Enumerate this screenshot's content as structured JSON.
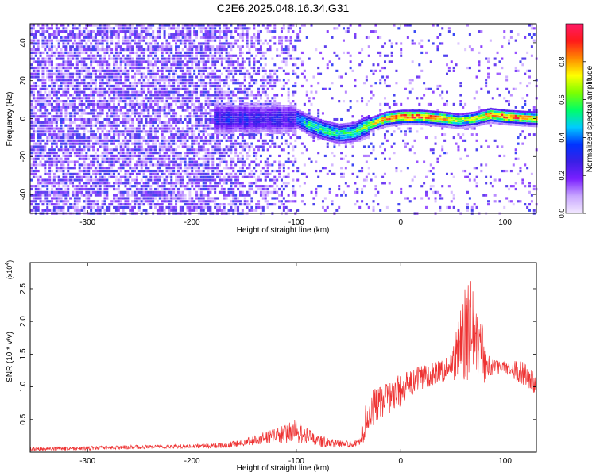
{
  "title": "C2E6.2025.048.16.34.G31",
  "chart_data": [
    {
      "type": "heatmap",
      "xlabel": "Height of straight line (km)",
      "ylabel": "Frequency (Hz)",
      "xlim": [
        -355,
        130
      ],
      "ylim": [
        -50,
        50
      ],
      "xticks": [
        -300,
        -200,
        -100,
        0,
        100
      ],
      "xtick_labels": [
        "-300",
        "-200",
        "-100",
        "0",
        "100"
      ],
      "yticks": [
        -40,
        -20,
        0,
        20,
        40
      ],
      "ytick_labels": [
        "-40",
        "-20",
        "0",
        "20",
        "40"
      ],
      "colorbar": {
        "label": "Normalized spectral amplitude",
        "range": [
          0,
          1
        ],
        "ticks": [
          0.0,
          0.2,
          0.4,
          0.6,
          0.8
        ],
        "tick_labels": [
          "0.0",
          "0.2",
          "0.4",
          "0.6",
          "0.8"
        ],
        "colors": [
          "#f2e8ff",
          "#c9a8ff",
          "#7a1fff",
          "#3a1fe6",
          "#0033ff",
          "#00ccff",
          "#00ff66",
          "#7dff00",
          "#ffff00",
          "#ff8800",
          "#ff1a1a",
          "#ff1a66"
        ]
      },
      "ridge": {
        "x": [
          -100,
          -90,
          -75,
          -60,
          -45,
          -30,
          -15,
          0,
          20,
          40,
          55,
          70,
          85,
          100,
          130
        ],
        "y": [
          0,
          -3,
          -6,
          -8,
          -7,
          -3,
          0,
          1,
          1,
          0,
          -1,
          0,
          2,
          1,
          0
        ],
        "strength": [
          0.45,
          0.55,
          0.6,
          0.55,
          0.6,
          0.7,
          0.85,
          0.95,
          0.95,
          0.9,
          0.7,
          0.75,
          0.9,
          0.95,
          0.8
        ]
      }
    },
    {
      "type": "line",
      "xlabel": "Height of straight line (km)",
      "ylabel": "SNR (10 * v/v)",
      "y_multiplier": "(x10",
      "y_multiplier_exp": "4",
      "y_multiplier_close": ")",
      "xlim": [
        -355,
        130
      ],
      "ylim": [
        0,
        29000
      ],
      "xticks": [
        -300,
        -200,
        -100,
        0,
        100
      ],
      "xtick_labels": [
        "-300",
        "-200",
        "-100",
        "0",
        "100"
      ],
      "yticks": [
        5000,
        10000,
        15000,
        20000,
        25000
      ],
      "ytick_labels": [
        "0.5",
        "1.0",
        "1.5",
        "2.0",
        "2.5"
      ],
      "series": [
        {
          "color": "#ee3333",
          "x": [
            -355,
            -300,
            -250,
            -200,
            -170,
            -150,
            -130,
            -110,
            -100,
            -90,
            -80,
            -70,
            -60,
            -50,
            -40,
            -35,
            -30,
            -20,
            -10,
            0,
            10,
            20,
            30,
            40,
            50,
            55,
            60,
            65,
            70,
            75,
            80,
            85,
            90,
            100,
            110,
            120,
            130
          ],
          "y": [
            500,
            600,
            800,
            900,
            1000,
            1500,
            2200,
            2800,
            3200,
            2500,
            1800,
            1500,
            1300,
            1200,
            1500,
            4000,
            6500,
            7500,
            8500,
            9500,
            10500,
            11500,
            12000,
            12500,
            13500,
            16000,
            17500,
            18500,
            19000,
            17000,
            14000,
            13000,
            13000,
            13000,
            12500,
            12000,
            10000
          ],
          "amplitude": [
            300,
            300,
            300,
            300,
            400,
            600,
            900,
            1500,
            1800,
            1200,
            900,
            800,
            600,
            500,
            500,
            2500,
            3000,
            2500,
            2500,
            2500,
            2000,
            2000,
            1800,
            1800,
            2500,
            5000,
            7000,
            8000,
            7000,
            6000,
            4000,
            1500,
            1200,
            1000,
            1500,
            2000,
            1500
          ]
        }
      ]
    }
  ]
}
